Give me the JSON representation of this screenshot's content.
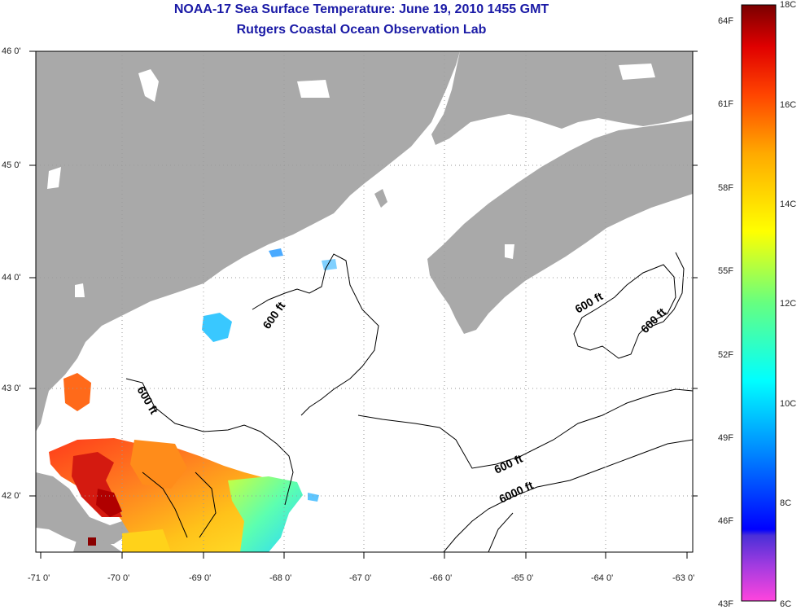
{
  "header": {
    "title": "NOAA-17 Sea Surface Temperature:  June 19, 2010 1455 GMT",
    "subtitle": "Rutgers Coastal Ocean Observation Lab"
  },
  "map": {
    "lat_labels": [
      "46 0'",
      "45 0'",
      "44 0'",
      "43 0'",
      "42 0'"
    ],
    "lon_labels": [
      "-71 0'",
      "-70 0'",
      "-69 0'",
      "-68 0'",
      "-67 0'",
      "-66 0'",
      "-65 0'",
      "-64 0'",
      "-63 0'"
    ],
    "contour_labels": [
      "600 ft",
      "600 ft",
      "600 ft",
      "600 ft",
      "600 ft",
      "6000 ft"
    ],
    "colors": {
      "land": "#a9a9a9",
      "contour": "#000000",
      "grid": "#9a9a9a"
    }
  },
  "colorbar": {
    "fahrenheit_labels": [
      "64F",
      "61F",
      "58F",
      "55F",
      "52F",
      "49F",
      "46F",
      "43F"
    ],
    "celsius_labels": [
      "18C",
      "16C",
      "14C",
      "12C",
      "10C",
      "8C",
      "6C"
    ],
    "colors": [
      "#ff44dd",
      "#7733cc",
      "#0000ff",
      "#0099ff",
      "#00ffff",
      "#66ff66",
      "#ffff00",
      "#ffaa00",
      "#ff5500",
      "#ff0000",
      "#aa0000",
      "#7a0000"
    ]
  }
}
